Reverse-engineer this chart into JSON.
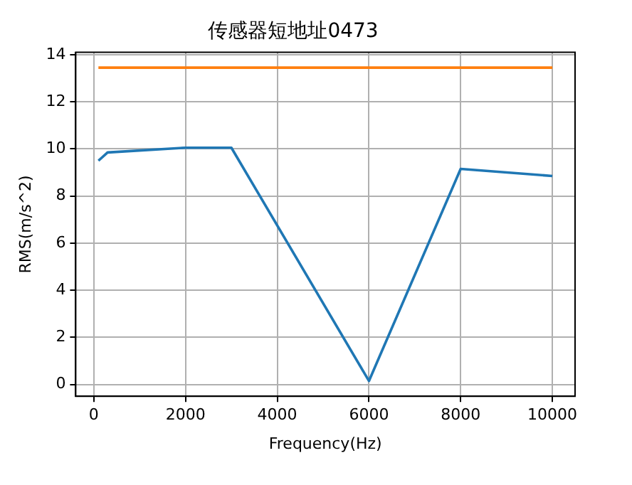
{
  "chart_data": {
    "type": "line",
    "title": "传感器短地址0473",
    "xlabel": "Frequency(Hz)",
    "ylabel": "RMS(m/s^2)",
    "xlim": [
      -395,
      10495
    ],
    "xticks": [
      0,
      2000,
      4000,
      6000,
      8000,
      10000
    ],
    "ylim": [
      -0.5,
      14.1
    ],
    "yticks": [
      0,
      2,
      4,
      6,
      8,
      10,
      12,
      14
    ],
    "grid": true,
    "legend": false,
    "marker": "none",
    "line_style": "solid",
    "series": [
      {
        "color": "#1f77b4",
        "x": [
          100,
          300,
          2000,
          3000,
          6000,
          8000,
          10000
        ],
        "values": [
          9.5,
          9.85,
          10.05,
          10.05,
          0.15,
          9.15,
          8.85
        ]
      },
      {
        "color": "#ff7f0e",
        "x": [
          100,
          10000
        ],
        "values": [
          13.45,
          13.45
        ]
      }
    ]
  }
}
